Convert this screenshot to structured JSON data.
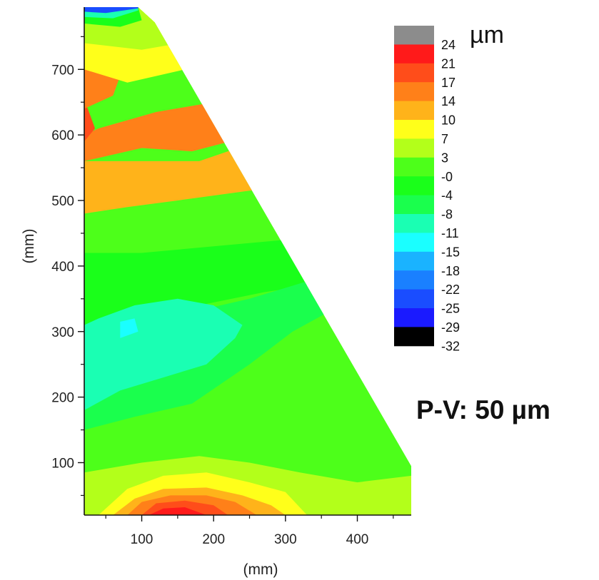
{
  "chart_data": {
    "type": "heatmap",
    "xlabel": "(mm)",
    "ylabel": "(mm)",
    "xlim": [
      20,
      475
    ],
    "ylim": [
      20,
      795
    ],
    "x_ticks": [
      100,
      200,
      300,
      400
    ],
    "y_ticks": [
      100,
      200,
      300,
      400,
      500,
      600,
      700
    ],
    "x_tick_labels": [
      "100",
      "200",
      "300",
      "400"
    ],
    "y_tick_labels": [
      "100",
      "200",
      "300",
      "400",
      "500",
      "600",
      "700"
    ],
    "colorbar": {
      "unit": "µm",
      "levels": [
        "24",
        "21",
        "17",
        "14",
        "10",
        "7",
        "3",
        "-0",
        "-4",
        "-8",
        "-11",
        "-15",
        "-18",
        "-22",
        "-25",
        "-29",
        "-32"
      ],
      "colors": [
        "#8c8c8c",
        "#ff1a1a",
        "#ff4d1a",
        "#ff8019",
        "#ffb31a",
        "#ffff1a",
        "#b3ff1a",
        "#4dff1a",
        "#1aff1a",
        "#1aff4d",
        "#1affb3",
        "#1affff",
        "#1ab3ff",
        "#1a80ff",
        "#1a4dff",
        "#1a1aff",
        "#000000"
      ]
    },
    "outline": [
      [
        20,
        20
      ],
      [
        475,
        20
      ],
      [
        475,
        95
      ],
      [
        118,
        772
      ],
      [
        95,
        795
      ],
      [
        20,
        795
      ]
    ],
    "regions": [
      {
        "level": 10,
        "points": [
          [
            20,
            480
          ],
          [
            80,
            490
          ],
          [
            150,
            500
          ],
          [
            250,
            515
          ],
          [
            340,
            520
          ],
          [
            322,
            555
          ],
          [
            260,
            590
          ],
          [
            180,
            560
          ],
          [
            100,
            560
          ],
          [
            20,
            560
          ]
        ]
      },
      {
        "level": 14,
        "points": [
          [
            20,
            560
          ],
          [
            100,
            580
          ],
          [
            170,
            575
          ],
          [
            240,
            595
          ],
          [
            300,
            600
          ],
          [
            315,
            610
          ],
          [
            290,
            660
          ],
          [
            200,
            650
          ],
          [
            120,
            635
          ],
          [
            40,
            610
          ],
          [
            20,
            600
          ]
        ]
      },
      {
        "level": 17,
        "points": [
          [
            20,
            590
          ],
          [
            35,
            610
          ],
          [
            25,
            640
          ],
          [
            20,
            650
          ]
        ]
      },
      {
        "level": 14,
        "points": [
          [
            20,
            640
          ],
          [
            60,
            660
          ],
          [
            70,
            690
          ],
          [
            20,
            700
          ]
        ]
      },
      {
        "level": 7,
        "points": [
          [
            20,
            700
          ],
          [
            80,
            680
          ],
          [
            160,
            700
          ],
          [
            230,
            720
          ],
          [
            250,
            735
          ],
          [
            118,
            772
          ],
          [
            95,
            795
          ],
          [
            20,
            795
          ]
        ]
      },
      {
        "level": 3,
        "points": [
          [
            20,
            740
          ],
          [
            100,
            730
          ],
          [
            180,
            745
          ],
          [
            118,
            772
          ],
          [
            95,
            795
          ],
          [
            20,
            795
          ]
        ]
      },
      {
        "level": -4,
        "points": [
          [
            20,
            770
          ],
          [
            70,
            765
          ],
          [
            100,
            775
          ],
          [
            95,
            795
          ],
          [
            20,
            795
          ]
        ]
      },
      {
        "level": -11,
        "points": [
          [
            20,
            780
          ],
          [
            60,
            778
          ],
          [
            95,
            790
          ],
          [
            95,
            795
          ],
          [
            20,
            795
          ]
        ]
      },
      {
        "level": -25,
        "points": [
          [
            20,
            788
          ],
          [
            50,
            786
          ],
          [
            95,
            793
          ],
          [
            95,
            795
          ],
          [
            20,
            795
          ]
        ]
      },
      {
        "level": -4,
        "points": [
          [
            20,
            300
          ],
          [
            90,
            320
          ],
          [
            180,
            340
          ],
          [
            270,
            360
          ],
          [
            360,
            375
          ],
          [
            430,
            400
          ],
          [
            370,
            460
          ],
          [
            300,
            440
          ],
          [
            200,
            430
          ],
          [
            100,
            420
          ],
          [
            20,
            420
          ]
        ]
      },
      {
        "level": -8,
        "points": [
          [
            20,
            150
          ],
          [
            90,
            170
          ],
          [
            170,
            190
          ],
          [
            250,
            250
          ],
          [
            310,
            300
          ],
          [
            360,
            330
          ],
          [
            420,
            360
          ],
          [
            340,
            380
          ],
          [
            250,
            350
          ],
          [
            170,
            330
          ],
          [
            90,
            320
          ],
          [
            20,
            300
          ]
        ]
      },
      {
        "level": -11,
        "points": [
          [
            20,
            180
          ],
          [
            70,
            210
          ],
          [
            130,
            230
          ],
          [
            190,
            250
          ],
          [
            230,
            290
          ],
          [
            240,
            310
          ],
          [
            200,
            340
          ],
          [
            150,
            350
          ],
          [
            90,
            340
          ],
          [
            40,
            320
          ],
          [
            20,
            310
          ]
        ]
      },
      {
        "level": -15,
        "points": [
          [
            70,
            290
          ],
          [
            95,
            300
          ],
          [
            90,
            320
          ],
          [
            70,
            315
          ]
        ]
      },
      {
        "level": 3,
        "points": [
          [
            20,
            85
          ],
          [
            100,
            100
          ],
          [
            180,
            110
          ],
          [
            250,
            100
          ],
          [
            320,
            85
          ],
          [
            400,
            70
          ],
          [
            475,
            80
          ],
          [
            475,
            20
          ],
          [
            20,
            20
          ]
        ]
      },
      {
        "level": 7,
        "points": [
          [
            40,
            20
          ],
          [
            80,
            60
          ],
          [
            130,
            80
          ],
          [
            190,
            85
          ],
          [
            250,
            70
          ],
          [
            300,
            55
          ],
          [
            330,
            20
          ]
        ]
      },
      {
        "level": 10,
        "points": [
          [
            60,
            20
          ],
          [
            90,
            45
          ],
          [
            130,
            60
          ],
          [
            190,
            62
          ],
          [
            240,
            50
          ],
          [
            280,
            35
          ],
          [
            300,
            20
          ]
        ]
      },
      {
        "level": 14,
        "points": [
          [
            80,
            20
          ],
          [
            100,
            40
          ],
          [
            140,
            50
          ],
          [
            190,
            50
          ],
          [
            230,
            40
          ],
          [
            260,
            20
          ]
        ]
      },
      {
        "level": 17,
        "points": [
          [
            100,
            20
          ],
          [
            120,
            38
          ],
          [
            160,
            42
          ],
          [
            200,
            35
          ],
          [
            220,
            20
          ]
        ]
      },
      {
        "level": 21,
        "points": [
          [
            110,
            20
          ],
          [
            130,
            30
          ],
          [
            160,
            32
          ],
          [
            190,
            20
          ]
        ]
      }
    ]
  },
  "annotation": "P-V: 50 µm"
}
